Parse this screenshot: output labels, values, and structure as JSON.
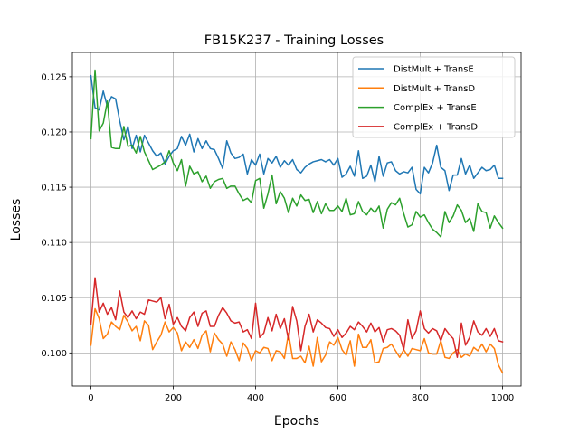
{
  "chart_data": {
    "type": "line",
    "title": "FB15K237 - Training Losses",
    "xlabel": "Epochs",
    "ylabel": "Losses",
    "xlim": [
      -45,
      1045
    ],
    "ylim": [
      0.097,
      0.1272
    ],
    "xticks": [
      0,
      200,
      400,
      600,
      800,
      1000
    ],
    "yticks": [
      0.1,
      0.105,
      0.11,
      0.115,
      0.12,
      0.125
    ],
    "ytick_labels": [
      "0.100",
      "0.105",
      "0.110",
      "0.115",
      "0.120",
      "0.125"
    ],
    "grid": true,
    "legend_position": "top-right",
    "x": [
      0,
      10,
      20,
      30,
      40,
      50,
      60,
      70,
      80,
      90,
      100,
      110,
      120,
      130,
      140,
      150,
      160,
      170,
      180,
      190,
      200,
      210,
      220,
      230,
      240,
      250,
      260,
      270,
      280,
      290,
      300,
      310,
      320,
      330,
      340,
      350,
      360,
      370,
      380,
      390,
      400,
      410,
      420,
      430,
      440,
      450,
      460,
      470,
      480,
      490,
      500,
      510,
      520,
      530,
      540,
      550,
      560,
      570,
      580,
      590,
      600,
      610,
      620,
      630,
      640,
      650,
      660,
      670,
      680,
      690,
      700,
      710,
      720,
      730,
      740,
      750,
      760,
      770,
      780,
      790,
      800,
      810,
      820,
      830,
      840,
      850,
      860,
      870,
      880,
      890,
      900,
      910,
      920,
      930,
      940,
      950,
      960,
      970,
      980,
      990,
      1000
    ],
    "series": [
      {
        "name": "DistMult + TransE",
        "color": "#1f77b4",
        "values": [
          0.1251,
          0.1222,
          0.122,
          0.1237,
          0.1223,
          0.1232,
          0.123,
          0.121,
          0.1193,
          0.1205,
          0.1185,
          0.1197,
          0.1182,
          0.1197,
          0.119,
          0.1183,
          0.1178,
          0.1181,
          0.1171,
          0.1178,
          0.1183,
          0.1185,
          0.1196,
          0.1188,
          0.1198,
          0.1182,
          0.1194,
          0.1185,
          0.1192,
          0.1185,
          0.1184,
          0.1176,
          0.1167,
          0.1192,
          0.1181,
          0.1176,
          0.1177,
          0.118,
          0.1162,
          0.1175,
          0.117,
          0.118,
          0.1162,
          0.1176,
          0.1172,
          0.1178,
          0.1168,
          0.1174,
          0.117,
          0.1175,
          0.1166,
          0.1163,
          0.1168,
          0.1171,
          0.1173,
          0.1174,
          0.1175,
          0.1173,
          0.1175,
          0.117,
          0.1176,
          0.1159,
          0.1162,
          0.1169,
          0.116,
          0.1183,
          0.1158,
          0.116,
          0.117,
          0.1155,
          0.1178,
          0.116,
          0.1172,
          0.1173,
          0.1165,
          0.1162,
          0.1164,
          0.1163,
          0.1168,
          0.1148,
          0.1144,
          0.1168,
          0.1163,
          0.1172,
          0.1188,
          0.1168,
          0.1165,
          0.1147,
          0.1161,
          0.1161,
          0.1176,
          0.1162,
          0.117,
          0.1158,
          0.1163,
          0.1168,
          0.1165,
          0.1166,
          0.117,
          0.1158,
          0.1158
        ]
      },
      {
        "name": "DistMult + TransD",
        "color": "#ff7f0e",
        "values": [
          0.1007,
          0.104,
          0.1031,
          0.1013,
          0.1017,
          0.1028,
          0.1024,
          0.1021,
          0.1034,
          0.1028,
          0.102,
          0.1024,
          0.1011,
          0.1029,
          0.1025,
          0.1003,
          0.101,
          0.1016,
          0.1028,
          0.1019,
          0.1023,
          0.1018,
          0.1002,
          0.101,
          0.1005,
          0.1012,
          0.1004,
          0.1016,
          0.102,
          0.1001,
          0.1018,
          0.1012,
          0.1008,
          0.0997,
          0.101,
          0.1003,
          0.0993,
          0.1009,
          0.1004,
          0.0993,
          0.1002,
          0.1,
          0.1005,
          0.1004,
          0.0993,
          0.1002,
          0.1001,
          0.0995,
          0.1018,
          0.0995,
          0.0995,
          0.0997,
          0.0991,
          0.1006,
          0.0988,
          0.1014,
          0.0992,
          0.0998,
          0.101,
          0.1007,
          0.1014,
          0.1003,
          0.0998,
          0.1011,
          0.0988,
          0.1017,
          0.1005,
          0.1005,
          0.1012,
          0.0991,
          0.0992,
          0.1004,
          0.1005,
          0.1008,
          0.1002,
          0.0996,
          0.1003,
          0.0997,
          0.1004,
          0.1003,
          0.1002,
          0.1013,
          0.1,
          0.0999,
          0.0999,
          0.1011,
          0.0996,
          0.0995,
          0.1,
          0.1003,
          0.0996,
          0.0999,
          0.0997,
          0.1005,
          0.1002,
          0.1008,
          0.1001,
          0.1008,
          0.1004,
          0.0989,
          0.0982
        ]
      },
      {
        "name": "ComplEx + TransE",
        "color": "#2ca02c",
        "values": [
          0.1194,
          0.1256,
          0.1201,
          0.1208,
          0.1228,
          0.1186,
          0.1185,
          0.1185,
          0.1205,
          0.1187,
          0.1188,
          0.1181,
          0.1196,
          0.1182,
          0.1174,
          0.1166,
          0.1168,
          0.117,
          0.1173,
          0.1183,
          0.1172,
          0.1165,
          0.1175,
          0.1151,
          0.1169,
          0.1162,
          0.1164,
          0.1155,
          0.116,
          0.1149,
          0.1155,
          0.1157,
          0.1158,
          0.1149,
          0.1151,
          0.1151,
          0.1144,
          0.1138,
          0.114,
          0.1136,
          0.1156,
          0.1158,
          0.1131,
          0.1144,
          0.1161,
          0.1135,
          0.1146,
          0.114,
          0.1127,
          0.114,
          0.1133,
          0.1143,
          0.1138,
          0.1139,
          0.1127,
          0.1137,
          0.1126,
          0.1135,
          0.1129,
          0.1129,
          0.1133,
          0.1128,
          0.114,
          0.1125,
          0.1126,
          0.1137,
          0.1128,
          0.1125,
          0.1131,
          0.1127,
          0.1133,
          0.1113,
          0.113,
          0.1136,
          0.1134,
          0.114,
          0.1126,
          0.1114,
          0.1116,
          0.1128,
          0.1123,
          0.1125,
          0.1118,
          0.1112,
          0.1109,
          0.1105,
          0.1128,
          0.1118,
          0.1124,
          0.1134,
          0.1129,
          0.1118,
          0.1122,
          0.111,
          0.1135,
          0.1128,
          0.1127,
          0.1113,
          0.1124,
          0.1118,
          0.1113
        ]
      },
      {
        "name": "ComplEx + TransD",
        "color": "#d62728",
        "values": [
          0.1026,
          0.1068,
          0.1037,
          0.1045,
          0.1035,
          0.1041,
          0.103,
          0.1056,
          0.1037,
          0.1032,
          0.1038,
          0.1031,
          0.1037,
          0.1035,
          0.1048,
          0.1047,
          0.1046,
          0.105,
          0.1031,
          0.1044,
          0.1026,
          0.1032,
          0.1024,
          0.102,
          0.1032,
          0.1037,
          0.1024,
          0.1036,
          0.1038,
          0.1024,
          0.1024,
          0.1034,
          0.1041,
          0.1036,
          0.1029,
          0.1027,
          0.1028,
          0.1019,
          0.1021,
          0.1013,
          0.1045,
          0.1014,
          0.1018,
          0.1032,
          0.102,
          0.1035,
          0.1022,
          0.1031,
          0.1012,
          0.1042,
          0.1029,
          0.1002,
          0.1024,
          0.1035,
          0.1019,
          0.103,
          0.1027,
          0.1023,
          0.1022,
          0.1015,
          0.1021,
          0.1014,
          0.1018,
          0.1024,
          0.1021,
          0.1028,
          0.1024,
          0.1019,
          0.1027,
          0.1019,
          0.1023,
          0.101,
          0.1021,
          0.1022,
          0.102,
          0.1016,
          0.1003,
          0.103,
          0.1013,
          0.102,
          0.1038,
          0.1022,
          0.1018,
          0.1022,
          0.102,
          0.1011,
          0.1022,
          0.1017,
          0.1013,
          0.0996,
          0.1027,
          0.1007,
          0.1014,
          0.1029,
          0.1019,
          0.1016,
          0.1022,
          0.1015,
          0.1022,
          0.1011,
          0.101
        ]
      }
    ]
  }
}
